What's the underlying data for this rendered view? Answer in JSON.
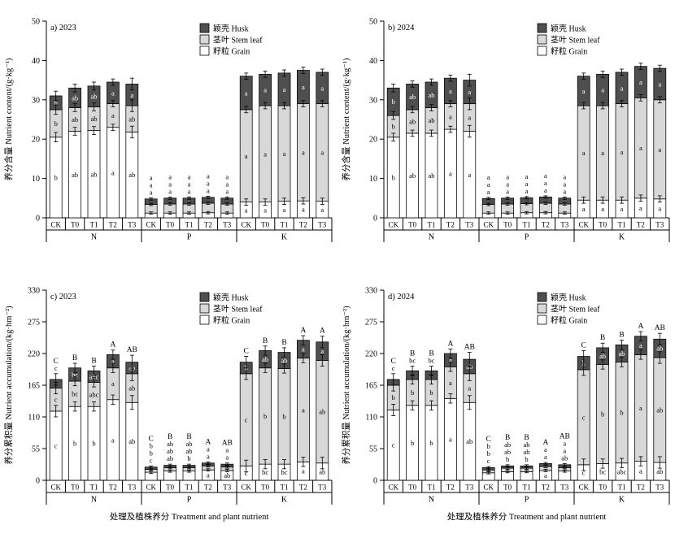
{
  "figure": {
    "colors": {
      "husk": "#4f4f4f",
      "stem": "#d8d8d8",
      "grain": "#ffffff"
    },
    "legend": [
      {
        "key": "husk",
        "label": "颖壳 Husk"
      },
      {
        "key": "stem",
        "label": "茎叶 Stem leaf"
      },
      {
        "key": "grain",
        "label": "籽粒 Grain"
      }
    ],
    "letters_order": [
      "grain",
      "stem",
      "husk",
      "total"
    ]
  },
  "chart_data": [
    {
      "type": "bar",
      "stacked": true,
      "panel_label": "a) 2023",
      "ylabel": "养分含量 Nutrient content/(g·kg⁻¹)",
      "ylim": [
        0,
        50
      ],
      "yticks": [
        0,
        10,
        20,
        30,
        40,
        50
      ],
      "xlabel": "",
      "groups": [
        "N",
        "P",
        "K"
      ],
      "treatments": [
        "CK",
        "T0",
        "T1",
        "T2",
        "T3"
      ],
      "bars": [
        {
          "group": "N",
          "t": "CK",
          "grain": 20.5,
          "stem": 7.0,
          "husk": 3.5,
          "err": 1.2,
          "letters": [
            "b",
            "b",
            "b",
            ""
          ]
        },
        {
          "group": "N",
          "t": "T0",
          "grain": 22.0,
          "stem": 6.0,
          "husk": 5.0,
          "err": 1.0,
          "letters": [
            "ab",
            "ab",
            "ab",
            ""
          ]
        },
        {
          "group": "N",
          "t": "T1",
          "grain": 22.2,
          "stem": 6.0,
          "husk": 5.3,
          "err": 1.0,
          "letters": [
            "ab",
            "ab",
            "ab",
            ""
          ]
        },
        {
          "group": "N",
          "t": "T2",
          "grain": 23.0,
          "stem": 6.0,
          "husk": 5.5,
          "err": 0.8,
          "letters": [
            "a",
            "a",
            "a",
            ""
          ]
        },
        {
          "group": "N",
          "t": "T3",
          "grain": 21.8,
          "stem": 6.7,
          "husk": 5.5,
          "err": 1.5,
          "letters": [
            "ab",
            "ab",
            "a",
            ""
          ]
        },
        {
          "group": "P",
          "t": "CK",
          "grain": 1.2,
          "stem": 2.2,
          "husk": 1.4,
          "err": 0.3,
          "letters": [
            "a",
            "a",
            "a",
            ""
          ]
        },
        {
          "group": "P",
          "t": "T0",
          "grain": 1.2,
          "stem": 2.3,
          "husk": 1.5,
          "err": 0.3,
          "letters": [
            "a",
            "a",
            "a",
            ""
          ]
        },
        {
          "group": "P",
          "t": "T1",
          "grain": 1.2,
          "stem": 2.3,
          "husk": 1.5,
          "err": 0.3,
          "letters": [
            "a",
            "a",
            "a",
            ""
          ]
        },
        {
          "group": "P",
          "t": "T2",
          "grain": 1.3,
          "stem": 2.4,
          "husk": 1.5,
          "err": 0.3,
          "letters": [
            "a",
            "a",
            "a",
            ""
          ]
        },
        {
          "group": "P",
          "t": "T3",
          "grain": 1.2,
          "stem": 2.3,
          "husk": 1.5,
          "err": 0.3,
          "letters": [
            "a",
            "a",
            "a",
            ""
          ]
        },
        {
          "group": "K",
          "t": "CK",
          "grain": 4.0,
          "stem": 23.5,
          "husk": 8.5,
          "err": 0.8,
          "letters": [
            "a",
            "a",
            "a",
            ""
          ]
        },
        {
          "group": "K",
          "t": "T0",
          "grain": 4.0,
          "stem": 24.5,
          "husk": 8.0,
          "err": 0.8,
          "letters": [
            "a",
            "a",
            "a",
            ""
          ]
        },
        {
          "group": "K",
          "t": "T1",
          "grain": 4.2,
          "stem": 24.3,
          "husk": 8.3,
          "err": 0.8,
          "letters": [
            "a",
            "a",
            "a",
            ""
          ]
        },
        {
          "group": "K",
          "t": "T2",
          "grain": 4.3,
          "stem": 24.7,
          "husk": 8.5,
          "err": 0.8,
          "letters": [
            "a",
            "a",
            "a",
            ""
          ]
        },
        {
          "group": "K",
          "t": "T3",
          "grain": 4.2,
          "stem": 24.8,
          "husk": 8.0,
          "err": 0.8,
          "letters": [
            "a",
            "a",
            "a",
            ""
          ]
        }
      ]
    },
    {
      "type": "bar",
      "stacked": true,
      "panel_label": "b) 2024",
      "ylabel": "养分含量 Nutrient content/(g·kg⁻¹)",
      "ylim": [
        0,
        50
      ],
      "yticks": [
        0,
        10,
        20,
        30,
        40,
        50
      ],
      "xlabel": "",
      "groups": [
        "N",
        "P",
        "K"
      ],
      "treatments": [
        "CK",
        "T0",
        "T1",
        "T2",
        "T3"
      ],
      "bars": [
        {
          "group": "N",
          "t": "CK",
          "grain": 20.5,
          "stem": 5.5,
          "husk": 7.0,
          "err": 1.0,
          "letters": [
            "b",
            "b",
            "b",
            ""
          ]
        },
        {
          "group": "N",
          "t": "T0",
          "grain": 21.5,
          "stem": 6.0,
          "husk": 6.5,
          "err": 0.8,
          "letters": [
            "ab",
            "ab",
            "ab",
            ""
          ]
        },
        {
          "group": "N",
          "t": "T1",
          "grain": 21.5,
          "stem": 6.5,
          "husk": 6.5,
          "err": 0.8,
          "letters": [
            "ab",
            "ab",
            "ab",
            ""
          ]
        },
        {
          "group": "N",
          "t": "T2",
          "grain": 22.5,
          "stem": 6.5,
          "husk": 6.5,
          "err": 0.8,
          "letters": [
            "a",
            "a",
            "a",
            ""
          ]
        },
        {
          "group": "N",
          "t": "T3",
          "grain": 22.0,
          "stem": 7.0,
          "husk": 6.0,
          "err": 1.5,
          "letters": [
            "a",
            "a",
            "a",
            ""
          ]
        },
        {
          "group": "P",
          "t": "CK",
          "grain": 1.2,
          "stem": 2.2,
          "husk": 1.5,
          "err": 0.3,
          "letters": [
            "a",
            "a",
            "a",
            ""
          ]
        },
        {
          "group": "P",
          "t": "T0",
          "grain": 1.2,
          "stem": 2.3,
          "husk": 1.5,
          "err": 0.3,
          "letters": [
            "a",
            "a",
            "a",
            ""
          ]
        },
        {
          "group": "P",
          "t": "T1",
          "grain": 1.3,
          "stem": 2.3,
          "husk": 1.5,
          "err": 0.3,
          "letters": [
            "a",
            "a",
            "a",
            ""
          ]
        },
        {
          "group": "P",
          "t": "T2",
          "grain": 1.3,
          "stem": 2.4,
          "husk": 1.6,
          "err": 0.3,
          "letters": [
            "a",
            "a",
            "a",
            ""
          ]
        },
        {
          "group": "P",
          "t": "T3",
          "grain": 1.2,
          "stem": 2.3,
          "husk": 1.5,
          "err": 0.3,
          "letters": [
            "a",
            "a",
            "a",
            ""
          ]
        },
        {
          "group": "K",
          "t": "CK",
          "grain": 4.5,
          "stem": 24.0,
          "husk": 7.5,
          "err": 0.8,
          "letters": [
            "a",
            "a",
            "a",
            ""
          ]
        },
        {
          "group": "K",
          "t": "T0",
          "grain": 4.5,
          "stem": 24.0,
          "husk": 8.0,
          "err": 0.8,
          "letters": [
            "a",
            "a",
            "a",
            ""
          ]
        },
        {
          "group": "K",
          "t": "T1",
          "grain": 4.5,
          "stem": 24.5,
          "husk": 8.0,
          "err": 0.8,
          "letters": [
            "a",
            "a",
            "a",
            ""
          ]
        },
        {
          "group": "K",
          "t": "T2",
          "grain": 5.0,
          "stem": 25.5,
          "husk": 8.0,
          "err": 0.8,
          "letters": [
            "a",
            "a",
            "a",
            ""
          ]
        },
        {
          "group": "K",
          "t": "T3",
          "grain": 4.8,
          "stem": 25.2,
          "husk": 8.0,
          "err": 0.8,
          "letters": [
            "a",
            "a",
            "a",
            ""
          ]
        }
      ]
    },
    {
      "type": "bar",
      "stacked": true,
      "panel_label": "c) 2023",
      "ylabel": "养分累积量 Nutrient accumulation/(kg·hm⁻²)",
      "ylim": [
        0,
        330
      ],
      "yticks": [
        0,
        55,
        110,
        165,
        220,
        275,
        330
      ],
      "xlabel": "处理及植株养分 Treatment  and plant nutrient",
      "groups": [
        "N",
        "P",
        "K"
      ],
      "treatments": [
        "CK",
        "T0",
        "T1",
        "T2",
        "T3"
      ],
      "bars": [
        {
          "group": "N",
          "t": "CK",
          "grain": 120,
          "stem": 40,
          "husk": 15,
          "err": 10,
          "letters": [
            "c",
            "c",
            "c",
            "C"
          ]
        },
        {
          "group": "N",
          "t": "T0",
          "grain": 128,
          "stem": 44,
          "husk": 23,
          "err": 8,
          "letters": [
            "b",
            "bc",
            "bc",
            "B"
          ]
        },
        {
          "group": "N",
          "t": "T1",
          "grain": 128,
          "stem": 42,
          "husk": 20,
          "err": 8,
          "letters": [
            "b",
            "abc",
            "abc",
            "B"
          ]
        },
        {
          "group": "N",
          "t": "T2",
          "grain": 140,
          "stem": 55,
          "husk": 23,
          "err": 8,
          "letters": [
            "a",
            "a",
            "a",
            "A"
          ]
        },
        {
          "group": "N",
          "t": "T3",
          "grain": 135,
          "stem": 50,
          "husk": 20,
          "err": 12,
          "letters": [
            "ab",
            "ab",
            "ab",
            "AB"
          ]
        },
        {
          "group": "P",
          "t": "CK",
          "grain": 14,
          "stem": 5,
          "husk": 4,
          "err": 2,
          "letters": [
            "c",
            "b",
            "b",
            "C"
          ]
        },
        {
          "group": "P",
          "t": "T0",
          "grain": 16,
          "stem": 6,
          "husk": 4,
          "err": 2,
          "letters": [
            "ab",
            "ab",
            "ab",
            "B"
          ]
        },
        {
          "group": "P",
          "t": "T1",
          "grain": 16,
          "stem": 6,
          "husk": 4,
          "err": 2,
          "letters": [
            "b",
            "ab",
            "ab",
            "B"
          ]
        },
        {
          "group": "P",
          "t": "T2",
          "grain": 18,
          "stem": 7,
          "husk": 5,
          "err": 2,
          "letters": [
            "a",
            "a",
            "a",
            "A"
          ]
        },
        {
          "group": "P",
          "t": "T3",
          "grain": 17,
          "stem": 6,
          "husk": 5,
          "err": 2,
          "letters": [
            "ab",
            "a",
            "a",
            "AB"
          ]
        },
        {
          "group": "K",
          "t": "CK",
          "grain": 25,
          "stem": 160,
          "husk": 20,
          "err": 10,
          "letters": [
            "c",
            "c",
            "b",
            "C"
          ]
        },
        {
          "group": "K",
          "t": "T0",
          "grain": 28,
          "stem": 167,
          "husk": 30,
          "err": 8,
          "letters": [
            "bc",
            "b",
            "ab",
            "B"
          ]
        },
        {
          "group": "K",
          "t": "T1",
          "grain": 28,
          "stem": 166,
          "husk": 28,
          "err": 8,
          "letters": [
            "bc",
            "b",
            "ab",
            "B"
          ]
        },
        {
          "group": "K",
          "t": "T2",
          "grain": 32,
          "stem": 180,
          "husk": 31,
          "err": 8,
          "letters": [
            "a",
            "a",
            "a",
            "A"
          ]
        },
        {
          "group": "K",
          "t": "T3",
          "grain": 30,
          "stem": 178,
          "husk": 32,
          "err": 10,
          "letters": [
            "ab",
            "ab",
            "a",
            "A"
          ]
        }
      ]
    },
    {
      "type": "bar",
      "stacked": true,
      "panel_label": "d) 2024",
      "ylabel": "养分累积量 Nutrient accumulation/(kg·hm⁻²)",
      "ylim": [
        0,
        330
      ],
      "yticks": [
        0,
        55,
        110,
        165,
        220,
        275,
        330
      ],
      "xlabel": "处理及植株养分 Treatment and plant nutrient",
      "groups": [
        "N",
        "P",
        "K"
      ],
      "treatments": [
        "CK",
        "T0",
        "T1",
        "T2",
        "T3"
      ],
      "bars": [
        {
          "group": "N",
          "t": "CK",
          "grain": 122,
          "stem": 43,
          "husk": 10,
          "err": 10,
          "letters": [
            "c",
            "b",
            "c",
            "C"
          ]
        },
        {
          "group": "N",
          "t": "T0",
          "grain": 130,
          "stem": 45,
          "husk": 15,
          "err": 8,
          "letters": [
            "b",
            "b",
            "bc",
            "B"
          ]
        },
        {
          "group": "N",
          "t": "T1",
          "grain": 130,
          "stem": 45,
          "husk": 15,
          "err": 8,
          "letters": [
            "b",
            "b",
            "bc",
            "B"
          ]
        },
        {
          "group": "N",
          "t": "T2",
          "grain": 142,
          "stem": 55,
          "husk": 23,
          "err": 8,
          "letters": [
            "a",
            "a",
            "a",
            "A"
          ]
        },
        {
          "group": "N",
          "t": "T3",
          "grain": 135,
          "stem": 50,
          "husk": 25,
          "err": 12,
          "letters": [
            "ab",
            "a",
            "ab",
            "AB"
          ]
        },
        {
          "group": "P",
          "t": "CK",
          "grain": 13,
          "stem": 5,
          "husk": 4,
          "err": 2,
          "letters": [
            "c",
            "b",
            "b",
            "C"
          ]
        },
        {
          "group": "P",
          "t": "T0",
          "grain": 15,
          "stem": 6,
          "husk": 4,
          "err": 2,
          "letters": [
            "b",
            "ab",
            "ab",
            "B"
          ]
        },
        {
          "group": "P",
          "t": "T1",
          "grain": 15,
          "stem": 6,
          "husk": 4,
          "err": 2,
          "letters": [
            "b",
            "ab",
            "ab",
            "B"
          ]
        },
        {
          "group": "P",
          "t": "T2",
          "grain": 17,
          "stem": 7,
          "husk": 5,
          "err": 2,
          "letters": [
            "a",
            "a",
            "a",
            "A"
          ]
        },
        {
          "group": "P",
          "t": "T3",
          "grain": 16,
          "stem": 6,
          "husk": 5,
          "err": 2,
          "letters": [
            "ab",
            "a",
            "a",
            "AB"
          ]
        },
        {
          "group": "K",
          "t": "CK",
          "grain": 27,
          "stem": 165,
          "husk": 23,
          "err": 10,
          "letters": [
            "c",
            "c",
            "b",
            "C"
          ]
        },
        {
          "group": "K",
          "t": "T0",
          "grain": 29,
          "stem": 172,
          "husk": 29,
          "err": 8,
          "letters": [
            "bc",
            "b",
            "ab",
            "B"
          ]
        },
        {
          "group": "K",
          "t": "T1",
          "grain": 30,
          "stem": 175,
          "husk": 30,
          "err": 8,
          "letters": [
            "abc",
            "b",
            "ab",
            "B"
          ]
        },
        {
          "group": "K",
          "t": "T2",
          "grain": 33,
          "stem": 185,
          "husk": 32,
          "err": 8,
          "letters": [
            "a",
            "a",
            "a",
            "A"
          ]
        },
        {
          "group": "K",
          "t": "T3",
          "grain": 31,
          "stem": 182,
          "husk": 32,
          "err": 10,
          "letters": [
            "ab",
            "ab",
            "ab",
            "AB"
          ]
        }
      ]
    }
  ]
}
